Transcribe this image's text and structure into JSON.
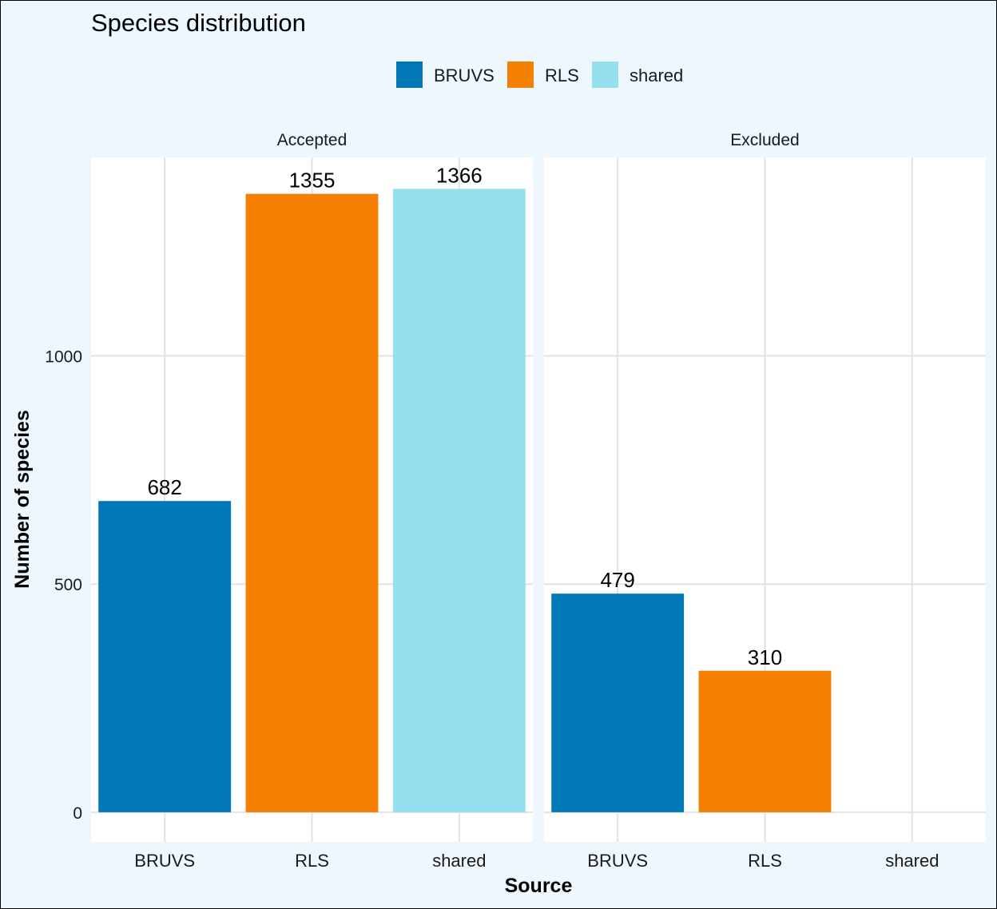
{
  "chart_data": {
    "type": "bar",
    "title": "Species distribution",
    "xlabel": "Source",
    "ylabel": "Number of species",
    "ylim": [
      -65,
      1435
    ],
    "yticks": [
      0,
      500,
      1000
    ],
    "categories": [
      "BRUVS",
      "RLS",
      "shared"
    ],
    "legend": {
      "placement": "top",
      "entries": [
        "BRUVS",
        "RLS",
        "shared"
      ]
    },
    "colors": {
      "BRUVS": "#0077B6",
      "RLS": "#F57F00",
      "shared": "#95DFEE",
      "panel_background": "#FFFFFF",
      "plot_background": "#EEF6FE",
      "grid": "#E3E3E3"
    },
    "grid": true,
    "facets": [
      {
        "label": "Accepted",
        "values": [
          682,
          1355,
          1366
        ],
        "data_labels": [
          "682",
          "1355",
          "1366"
        ]
      },
      {
        "label": "Excluded",
        "values": [
          479,
          310,
          null
        ],
        "data_labels": [
          "479",
          "310",
          ""
        ]
      }
    ]
  }
}
